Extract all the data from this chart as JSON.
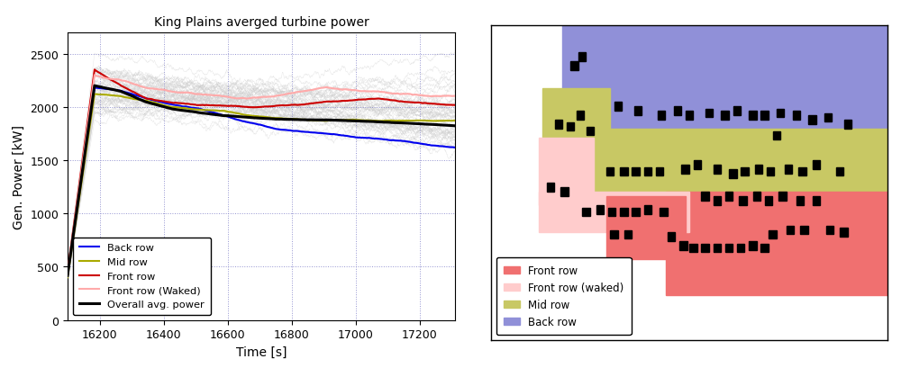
{
  "title": "King Plains averged turbine power",
  "xlabel": "Time [s]",
  "ylabel": "Gen. Power [kW]",
  "xlim": [
    16100,
    17310
  ],
  "ylim": [
    0,
    2700
  ],
  "xticks": [
    16200,
    16400,
    16600,
    16800,
    17000,
    17200
  ],
  "yticks": [
    0,
    500,
    1000,
    1500,
    2000,
    2500
  ],
  "colors": {
    "back_row": "#0000ee",
    "mid_row": "#aaaa00",
    "front_row": "#cc0000",
    "front_waked": "#ffaaaa",
    "overall": "#000000",
    "noise": "#cccccc"
  },
  "legend_labels": [
    "Back row",
    "Mid row",
    "Front row",
    "Front row (Waked)",
    "Overall avg. power"
  ],
  "inlay_colors": {
    "front_row": "#f07070",
    "front_waked": "#ffcccc",
    "mid_row": "#c8c864",
    "back_row": "#9090d8"
  },
  "inlay_legend": [
    "Front row",
    "Front row (waked)",
    "Mid row",
    "Back row"
  ]
}
